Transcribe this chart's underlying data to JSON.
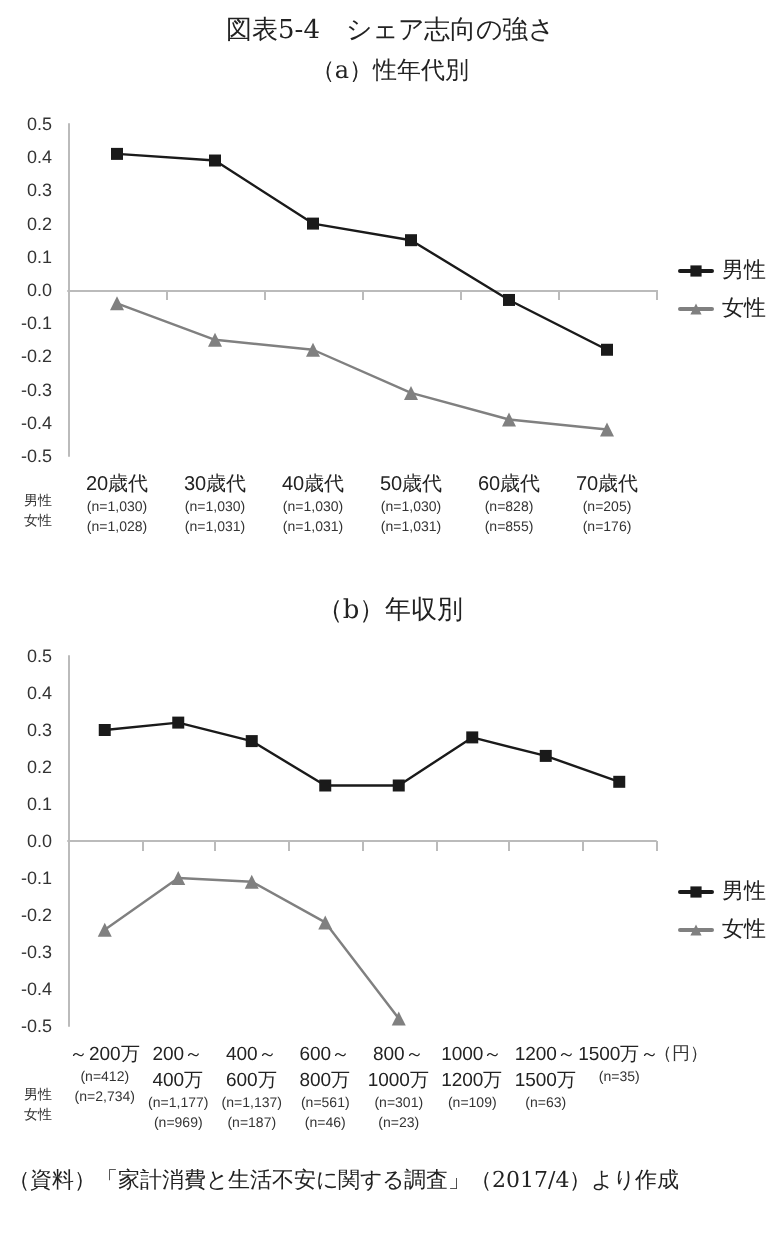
{
  "chart_data": [
    {
      "type": "line",
      "title": "図表5-4　シェア志向の強さ",
      "subtitle": "（a）性年代別",
      "categories": [
        "20歳代\n(n=1,030)\n(n=1,028)",
        "30歳代\n(n=1,030)\n(n=1,031)",
        "40歳代\n(n=1,030)\n(n=1,031)",
        "50歳代\n(n=1,030)\n(n=1,031)",
        "60歳代\n(n=828)\n(n=855)",
        "70歳代\n(n=205)\n(n=176)"
      ],
      "series": [
        {
          "name": "男性",
          "color": "#1a1a1a",
          "marker": "square",
          "values": [
            0.41,
            0.39,
            0.2,
            0.15,
            -0.03,
            -0.18
          ]
        },
        {
          "name": "女性",
          "color": "#808080",
          "marker": "triangle",
          "values": [
            -0.04,
            -0.15,
            -0.18,
            -0.31,
            -0.39,
            -0.42
          ]
        }
      ],
      "ylim": [
        -0.5,
        0.5
      ],
      "yticks": [
        {
          "value": -0.5,
          "label": "-0.5"
        },
        {
          "value": -0.4,
          "label": "-0.4"
        },
        {
          "value": -0.3,
          "label": "-0.3"
        },
        {
          "value": -0.2,
          "label": "-0.2"
        },
        {
          "value": -0.1,
          "label": "-0.1"
        },
        {
          "value": 0,
          "label": "0.0"
        },
        {
          "value": 0.1,
          "label": "0.1"
        },
        {
          "value": 0.2,
          "label": "0.2"
        },
        {
          "value": 0.3,
          "label": "0.3"
        },
        {
          "value": 0.4,
          "label": "0.4"
        },
        {
          "value": 0.5,
          "label": "0.5"
        }
      ],
      "annotations": [
        "男性",
        "女性"
      ],
      "legend": "right"
    },
    {
      "type": "line",
      "title": "（b）年収別",
      "categories": [
        "～200万\n(n=412)\n(n=2,734)",
        "200～\n400万\n(n=1,177)\n(n=969)",
        "400～\n600万\n(n=1,137)\n(n=187)",
        "600～\n800万\n(n=561)\n(n=46)",
        "800～\n1000万\n(n=301)\n(n=23)",
        "1000～\n1200万\n(n=109)",
        "1200～\n1500万\n(n=63)",
        "1500万～\n(n=35)"
      ],
      "series": [
        {
          "name": "男性",
          "color": "#1a1a1a",
          "marker": "square",
          "values": [
            0.3,
            0.32,
            0.27,
            0.15,
            0.15,
            0.28,
            0.23,
            0.16
          ]
        },
        {
          "name": "女性",
          "color": "#808080",
          "marker": "triangle",
          "values": [
            -0.24,
            -0.1,
            -0.11,
            -0.22,
            -0.48,
            null,
            null,
            null
          ]
        }
      ],
      "ylim": [
        -0.5,
        0.5
      ],
      "yticks": [
        {
          "value": -0.5,
          "label": "-0.5"
        },
        {
          "value": -0.4,
          "label": "-0.4"
        },
        {
          "value": -0.3,
          "label": "-0.3"
        },
        {
          "value": -0.2,
          "label": "-0.2"
        },
        {
          "value": -0.1,
          "label": "-0.1"
        },
        {
          "value": 0,
          "label": "0.0"
        },
        {
          "value": 0.1,
          "label": "0.1"
        },
        {
          "value": 0.2,
          "label": "0.2"
        },
        {
          "value": 0.3,
          "label": "0.3"
        },
        {
          "value": 0.4,
          "label": "0.4"
        },
        {
          "value": 0.5,
          "label": "0.5"
        }
      ],
      "annotations": [
        "男性",
        "女性",
        "（円）",
        "（資料）「家計消費と生活不安に関する調査」（2017/4）より作成"
      ],
      "legend": "right"
    }
  ]
}
